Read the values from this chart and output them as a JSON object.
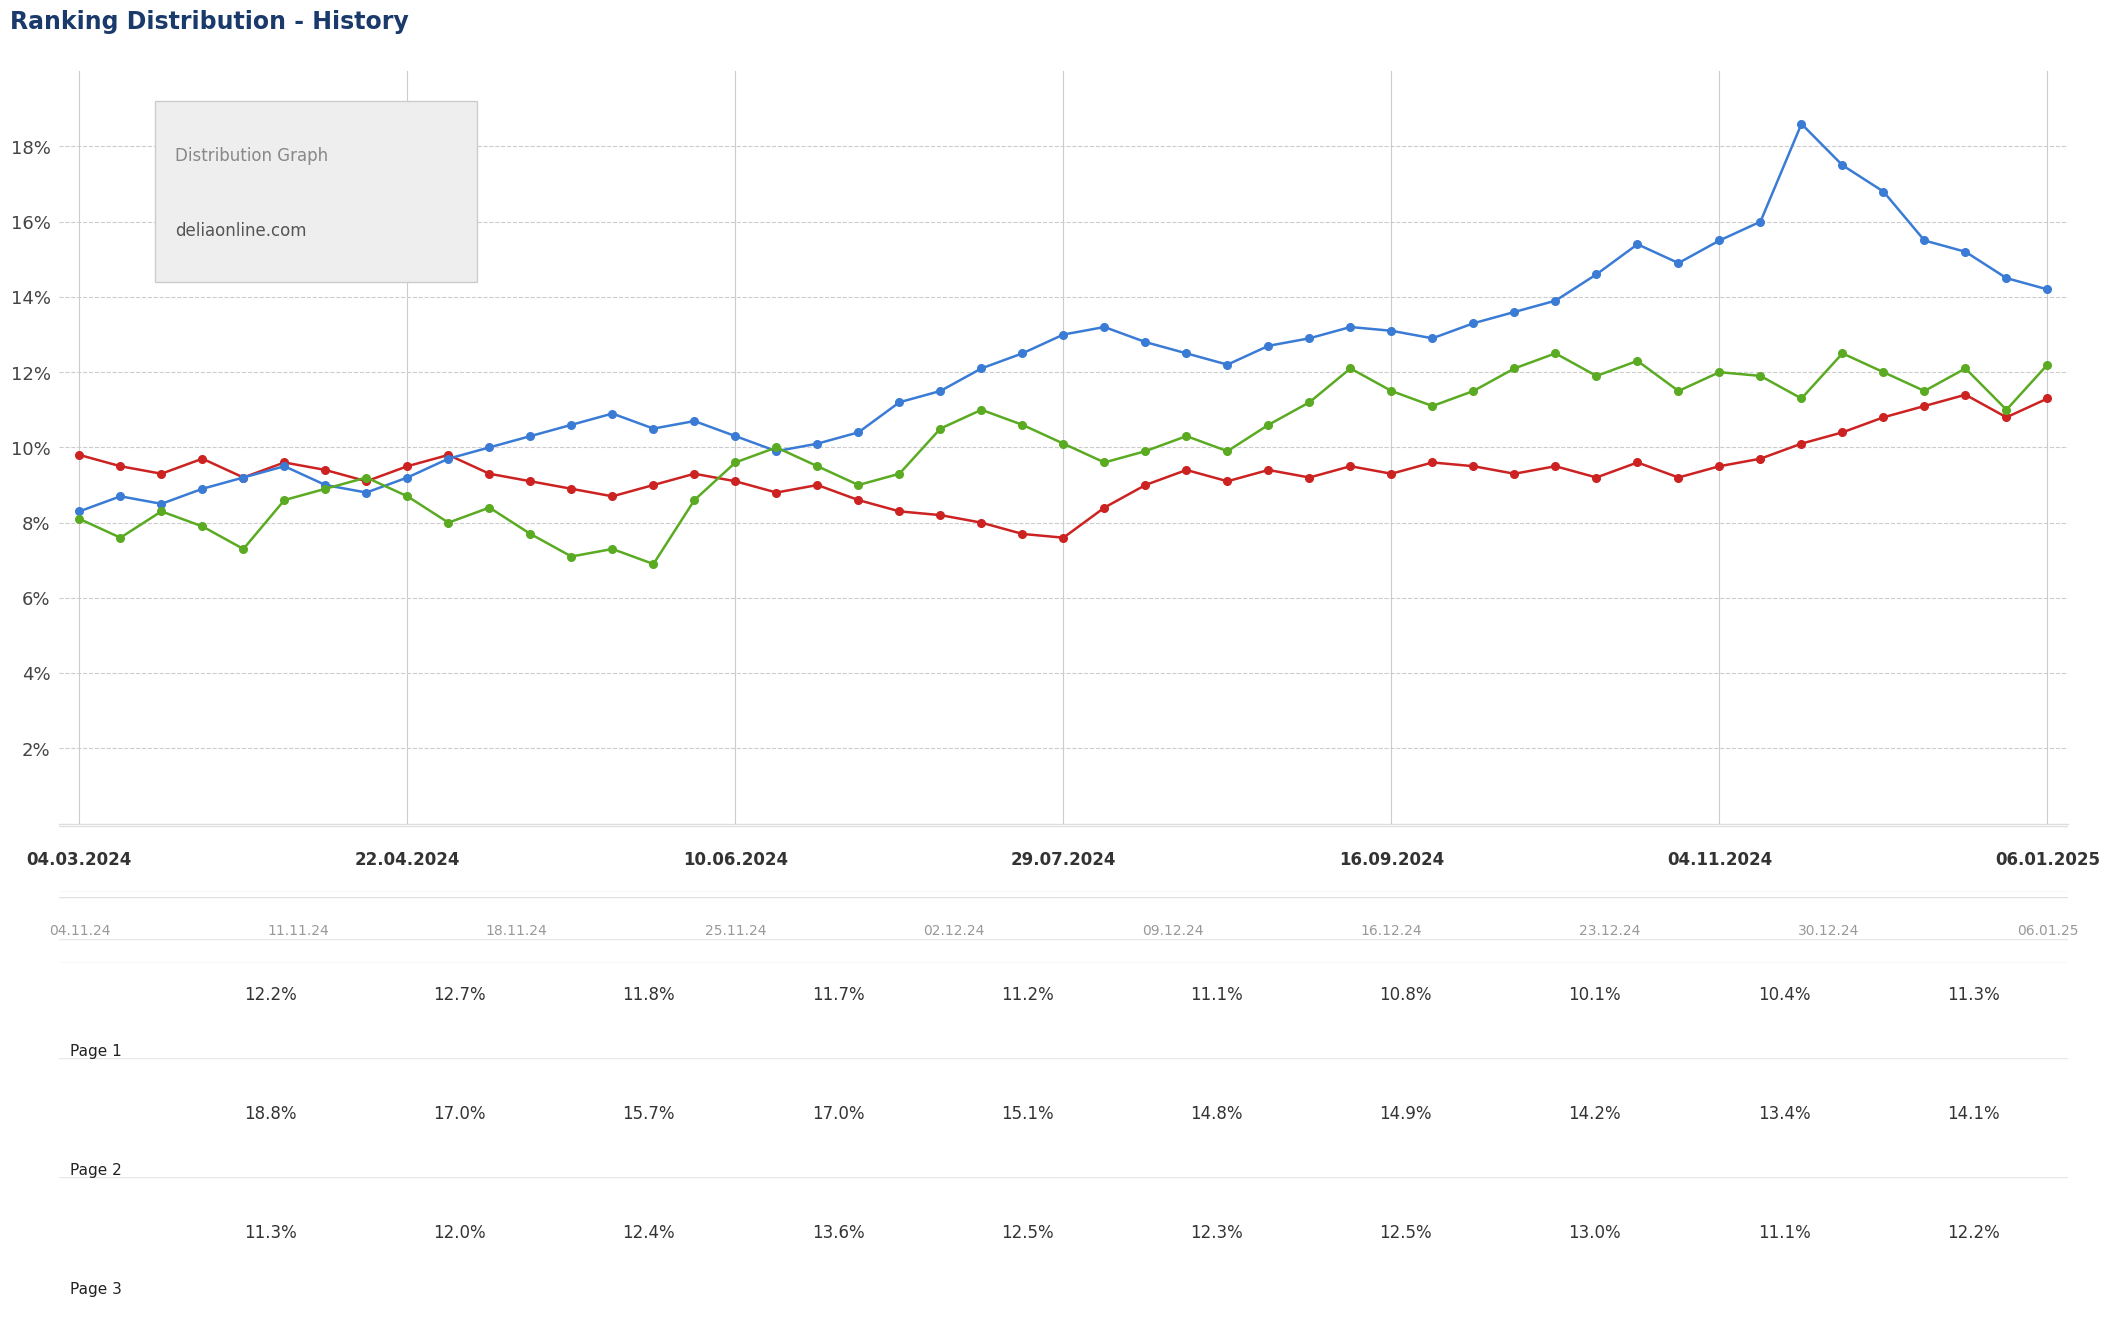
{
  "title": "Ranking Distribution - History",
  "title_color": "#1a3a6b",
  "legend_title": "Distribution Graph",
  "legend_subtitle": "deliaonline.com",
  "background_color": "#ffffff",
  "plot_bg_color": "#ffffff",
  "major_dates": [
    "04.03.2024",
    "22.04.2024",
    "10.06.2024",
    "29.07.2024",
    "16.09.2024",
    "04.11.2024",
    "06.01.2025"
  ],
  "minor_dates": [
    "04.11.24",
    "11.11.24",
    "18.11.24",
    "25.11.24",
    "02.12.24",
    "09.12.24",
    "16.12.24",
    "23.12.24",
    "30.12.24",
    "06.01.25"
  ],
  "page1_label": "Page 1",
  "page2_label": "Page 2",
  "page3_label": "Page 3",
  "page1_color": "#cc2222",
  "page2_color": "#3a7bd5",
  "page3_color": "#5aaa22",
  "page1_table": [
    12.2,
    12.7,
    11.8,
    11.7,
    11.2,
    11.1,
    10.8,
    10.1,
    10.4,
    11.3
  ],
  "page2_table": [
    18.8,
    17.0,
    15.7,
    17.0,
    15.1,
    14.8,
    14.9,
    14.2,
    13.4,
    14.1
  ],
  "page3_table": [
    11.3,
    12.0,
    12.4,
    13.6,
    12.5,
    12.3,
    12.5,
    13.0,
    11.1,
    12.2
  ],
  "ylim": [
    0,
    20
  ],
  "yticks": [
    2,
    4,
    6,
    8,
    10,
    12,
    14,
    16,
    18
  ],
  "page1_y": [
    9.8,
    9.5,
    9.3,
    9.7,
    9.2,
    9.6,
    9.4,
    9.1,
    9.5,
    9.8,
    9.3,
    9.1,
    8.9,
    8.7,
    9.0,
    9.3,
    9.1,
    8.8,
    9.0,
    8.6,
    8.3,
    8.2,
    8.0,
    7.7,
    7.6,
    8.4,
    9.0,
    9.4,
    9.1,
    9.4,
    9.2,
    9.5,
    9.3,
    9.6,
    9.5,
    9.3,
    9.5,
    9.2,
    9.6,
    9.2,
    9.5,
    9.7,
    10.1,
    10.4,
    10.8,
    11.1,
    11.4,
    10.8,
    11.3
  ],
  "page2_y": [
    8.3,
    8.7,
    8.5,
    8.9,
    9.2,
    9.5,
    9.0,
    8.8,
    9.2,
    9.7,
    10.0,
    10.3,
    10.6,
    10.9,
    10.5,
    10.7,
    10.3,
    9.9,
    10.1,
    10.4,
    11.2,
    11.5,
    12.1,
    12.5,
    13.0,
    13.2,
    12.8,
    12.5,
    12.2,
    12.7,
    12.9,
    13.2,
    13.1,
    12.9,
    13.3,
    13.6,
    13.9,
    14.6,
    15.4,
    14.9,
    15.5,
    16.0,
    18.6,
    17.5,
    16.8,
    15.5,
    15.2,
    14.5,
    14.2
  ],
  "page3_y": [
    8.1,
    7.6,
    8.3,
    7.9,
    7.3,
    8.6,
    8.9,
    9.2,
    8.7,
    8.0,
    8.4,
    7.7,
    7.1,
    7.3,
    6.9,
    8.6,
    9.6,
    10.0,
    9.5,
    9.0,
    9.3,
    10.5,
    11.0,
    10.6,
    10.1,
    9.6,
    9.9,
    10.3,
    9.9,
    10.6,
    11.2,
    12.1,
    11.5,
    11.1,
    11.5,
    12.1,
    12.5,
    11.9,
    12.3,
    11.5,
    12.0,
    11.9,
    11.3,
    12.5,
    12.0,
    11.5,
    12.1,
    11.0,
    12.2
  ]
}
